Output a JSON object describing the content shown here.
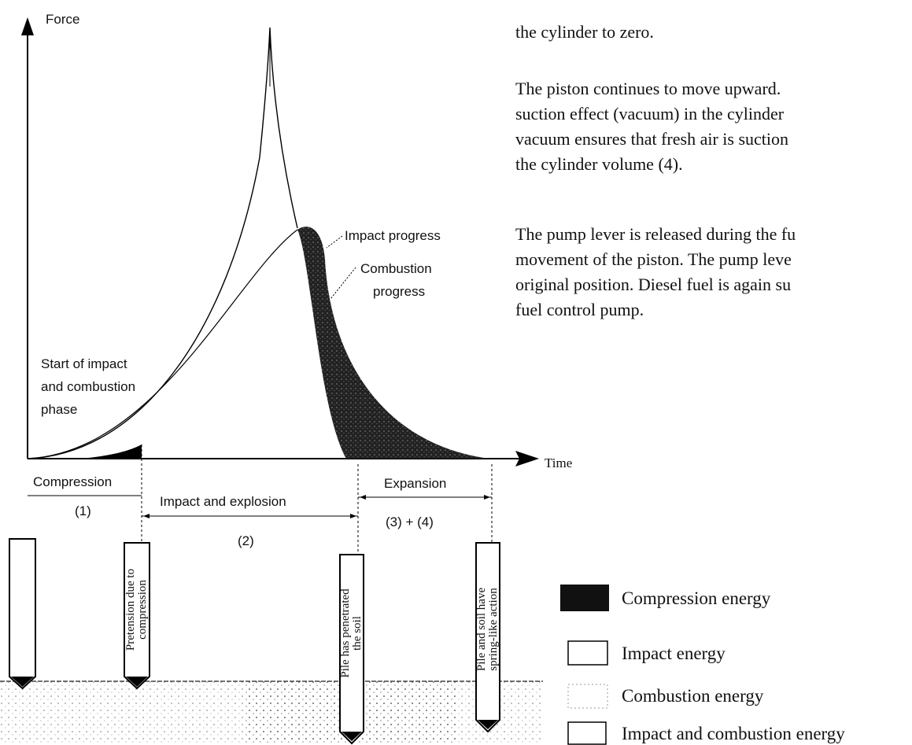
{
  "axes": {
    "y_label": "Force",
    "x_label": "Time"
  },
  "annotations": {
    "impact_progress": "Impact progress",
    "combustion_progress": [
      "Combustion",
      "progress"
    ],
    "start": [
      "Start of impact",
      "and  combustion",
      "phase"
    ]
  },
  "phases": [
    {
      "name": "Compression",
      "number": "(1)"
    },
    {
      "name": "Impact and explosion",
      "number": "(2)"
    },
    {
      "name": "Expansion",
      "number": "(3) + (4)"
    }
  ],
  "piles": [
    [
      "Pretension due to",
      "compression"
    ],
    [
      "Pile has penetrated",
      "the soil"
    ],
    [
      "Pile and soil have",
      "spring-like action"
    ]
  ],
  "legend": [
    "Compression energy",
    "Impact energy",
    "Combustion energy",
    "Impact and combustion energy"
  ],
  "text": {
    "paragraphs": [
      [
        "the cylinder to zero."
      ],
      [
        "The piston continues to move upward.",
        "suction effect (vacuum) in the cylinder",
        "vacuum ensures that fresh air is suction",
        "the cylinder volume (4)."
      ],
      [
        "The pump lever is released during the fu",
        "movement of the piston. The pump leve",
        "original position. Diesel fuel is again su",
        "fuel control pump."
      ]
    ]
  }
}
